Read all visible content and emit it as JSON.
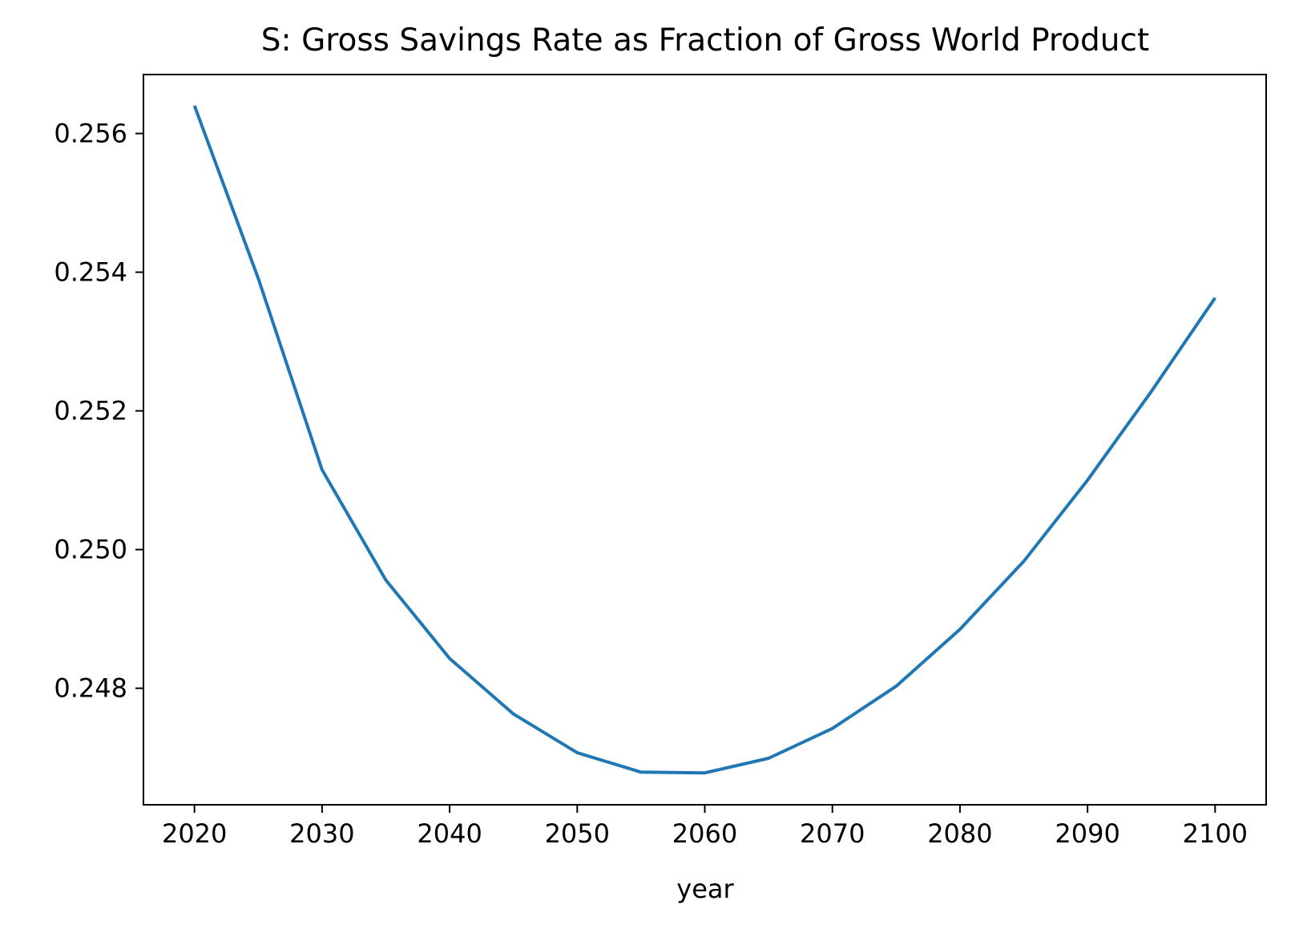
{
  "chart_data": {
    "type": "line",
    "title": "S: Gross Savings Rate as Fraction of Gross World Product",
    "xlabel": "year",
    "ylabel": "",
    "xlim": [
      2016,
      2104
    ],
    "ylim": [
      0.24632,
      0.25685
    ],
    "x_ticks": [
      2020,
      2030,
      2040,
      2050,
      2060,
      2070,
      2080,
      2090,
      2100
    ],
    "y_ticks": [
      0.248,
      0.25,
      0.252,
      0.254,
      0.256
    ],
    "y_tick_labels": [
      "0.248",
      "0.250",
      "0.252",
      "0.254",
      "0.256"
    ],
    "grid": false,
    "legend": "none",
    "series": [
      {
        "color": "#1f77b4",
        "x": [
          2020,
          2025,
          2030,
          2035,
          2040,
          2045,
          2050,
          2055,
          2060,
          2065,
          2070,
          2075,
          2080,
          2085,
          2090,
          2095,
          2100
        ],
        "y": [
          0.2564,
          0.25391,
          0.25115,
          0.24956,
          0.24843,
          0.24763,
          0.24707,
          0.24679,
          0.24678,
          0.24699,
          0.24742,
          0.24803,
          0.24885,
          0.24983,
          0.251,
          0.25228,
          0.25363
        ]
      }
    ]
  }
}
